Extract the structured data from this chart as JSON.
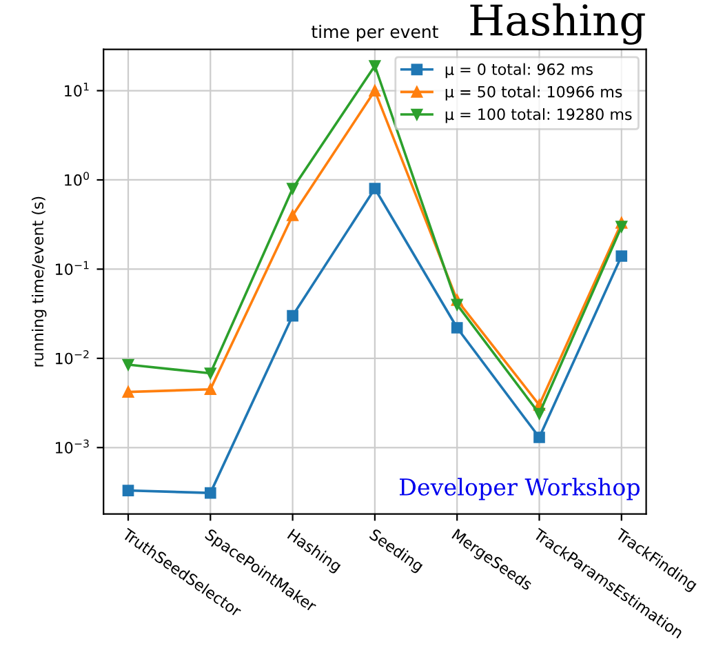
{
  "chart_data": {
    "type": "line",
    "title": "time per event",
    "ylabel": "running time/event (s)",
    "categories": [
      "TruthSeedSelector",
      "SpacePointMaker",
      "Hashing",
      "Seeding",
      "MergeSeeds",
      "TrackParamsEstimation",
      "TrackFinding"
    ],
    "series": [
      {
        "name": "μ = 0 total: 962 ms",
        "color": "#1f77b4",
        "marker": "square",
        "values": [
          0.00033,
          0.00031,
          0.03,
          0.8,
          0.022,
          0.0013,
          0.14
        ]
      },
      {
        "name": "μ = 50 total: 10966 ms",
        "color": "#ff7f0e",
        "marker": "triangle",
        "values": [
          0.0042,
          0.0045,
          0.4,
          10,
          0.045,
          0.003,
          0.33
        ]
      },
      {
        "name": "μ = 100 total: 19280 ms",
        "color": "#2ca02c",
        "marker": "triangle_down",
        "values": [
          0.0085,
          0.0068,
          0.8,
          19,
          0.04,
          0.0024,
          0.3
        ]
      }
    ],
    "log": "y",
    "ylim": [
      0.00018,
      29
    ],
    "yticks": [
      {
        "value": 0.001,
        "label": "10$^{−3}$"
      },
      {
        "value": 0.01,
        "label": "10$^{−2}$"
      },
      {
        "value": 0.1,
        "label": "10$^{−1}$"
      },
      {
        "value": 1,
        "label": "10$^{0}$"
      },
      {
        "value": 10,
        "label": "10$^{1}$"
      }
    ],
    "grid": true,
    "legend": "top right",
    "annotations": [
      "Hashing",
      "Developer Workshop"
    ]
  }
}
